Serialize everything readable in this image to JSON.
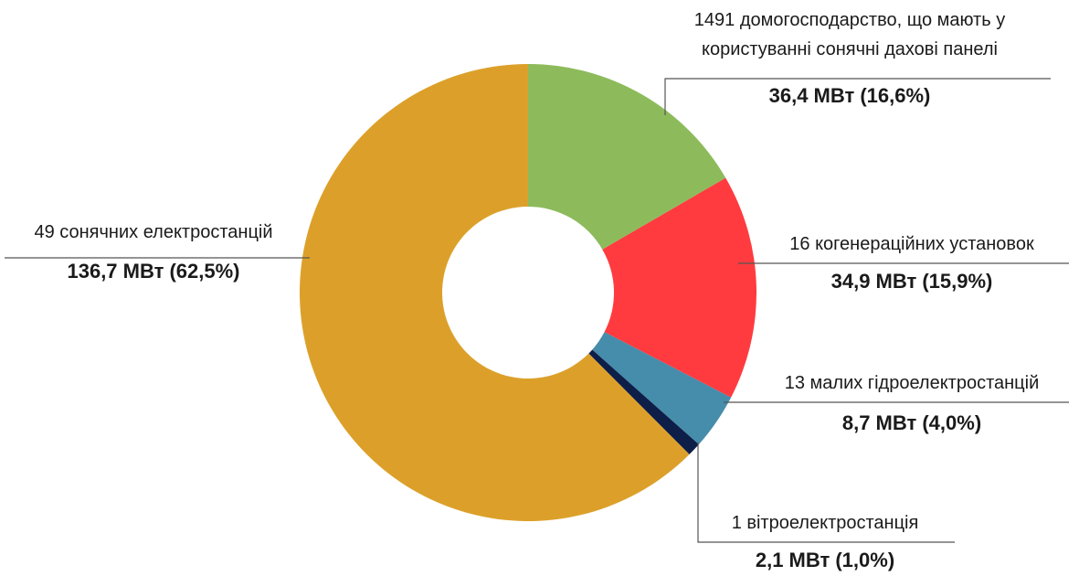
{
  "chart_data": {
    "type": "pie",
    "donut": true,
    "categories": [
      "1491 домогосподарство, що мають у користуванні сонячні дахові панелі",
      "16 когенераційних установок",
      "13 малих гідроелектростанцій",
      "1 вітроелектростанція",
      "49 сонячних електростанцій"
    ],
    "category_lines": [
      [
        "1491 домогосподарство, що мають у",
        "користуванні сонячні дахові панелі"
      ],
      [
        "16 когенераційних установок"
      ],
      [
        "13 малих гідроелектростанцій"
      ],
      [
        "1 вітроелектростанція"
      ],
      [
        "49 сонячних електростанцій"
      ]
    ],
    "values": [
      36.4,
      34.9,
      8.7,
      2.1,
      136.7
    ],
    "percentages": [
      16.6,
      15.9,
      4.0,
      1.0,
      62.5
    ],
    "value_labels": [
      "36,4 МВт (16,6%)",
      "34,9 МВт (15,9%)",
      "8,7 МВт (4,0%)",
      "2,1 МВт (1,0%)",
      "136,7 МВт (62,5%)"
    ],
    "colors": [
      "#8DBB5B",
      "#FF3B3F",
      "#468CAB",
      "#0D1E48",
      "#DCA02A"
    ],
    "unit": "МВт",
    "start_angle": "12 o'clock",
    "direction": "clockwise",
    "legend": "none"
  }
}
